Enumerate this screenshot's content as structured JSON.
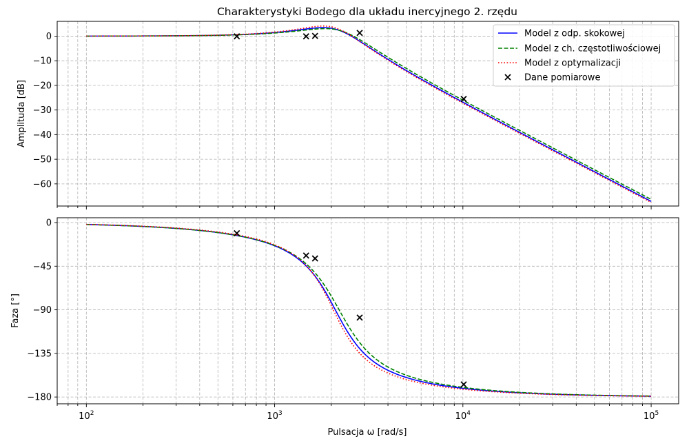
{
  "chart_data": {
    "type": "line",
    "title": "Charakterystyki Bodego dla układu inercyjnego 2. rzędu",
    "xlabel": "Pulsacja ω [rad/s]",
    "x_scale": "log",
    "xlim": [
      70,
      140000
    ],
    "x_ticks": [
      {
        "value": 100,
        "base": "10",
        "exp": "2"
      },
      {
        "value": 1000,
        "base": "10",
        "exp": "3"
      },
      {
        "value": 10000,
        "base": "10",
        "exp": "4"
      },
      {
        "value": 100000,
        "base": "10",
        "exp": "5"
      }
    ],
    "grid": true,
    "legend_placement": "top-right",
    "series": [
      {
        "name": "Model z odp. skokowej",
        "color": "#0000ff",
        "style": "solid",
        "model": {
          "K": 1.0,
          "wn": 2100,
          "zeta": 0.36
        }
      },
      {
        "name": "Model z ch. częstotliwościowej",
        "color": "#008000",
        "style": "dashed",
        "model": {
          "K": 1.0,
          "wn": 2200,
          "zeta": 0.38
        }
      },
      {
        "name": "Model z optymalizacji",
        "color": "#ff0000",
        "style": "dotted",
        "model": {
          "K": 1.0,
          "wn": 2050,
          "zeta": 0.33
        }
      }
    ],
    "measured": {
      "name": "Dane pomiarowe",
      "marker": "x",
      "color": "#000000",
      "points": [
        {
          "w": 630,
          "mag": -0.1,
          "phase": -11
        },
        {
          "w": 1470,
          "mag": -0.1,
          "phase": -34
        },
        {
          "w": 1640,
          "mag": 0.1,
          "phase": -37
        },
        {
          "w": 2830,
          "mag": 1.3,
          "phase": -98
        },
        {
          "w": 10100,
          "mag": -25.5,
          "phase": -167
        }
      ]
    },
    "subplots": [
      {
        "id": "magnitude",
        "ylabel": "Amplituda [dB]",
        "ylim": [
          -69,
          6
        ],
        "y_ticks": [
          {
            "value": 0,
            "label": "0"
          },
          {
            "value": -10,
            "label": "−10"
          },
          {
            "value": -20,
            "label": "−20"
          },
          {
            "value": -30,
            "label": "−30"
          },
          {
            "value": -40,
            "label": "−40"
          },
          {
            "value": -50,
            "label": "−50"
          },
          {
            "value": -60,
            "label": "−60"
          }
        ]
      },
      {
        "id": "phase",
        "ylabel": "Faza [°]",
        "ylim": [
          -187,
          5
        ],
        "y_ticks": [
          {
            "value": 0,
            "label": "0"
          },
          {
            "value": -45,
            "label": "−45"
          },
          {
            "value": -90,
            "label": "−90"
          },
          {
            "value": -135,
            "label": "−135"
          },
          {
            "value": -180,
            "label": "−180"
          }
        ]
      }
    ]
  }
}
